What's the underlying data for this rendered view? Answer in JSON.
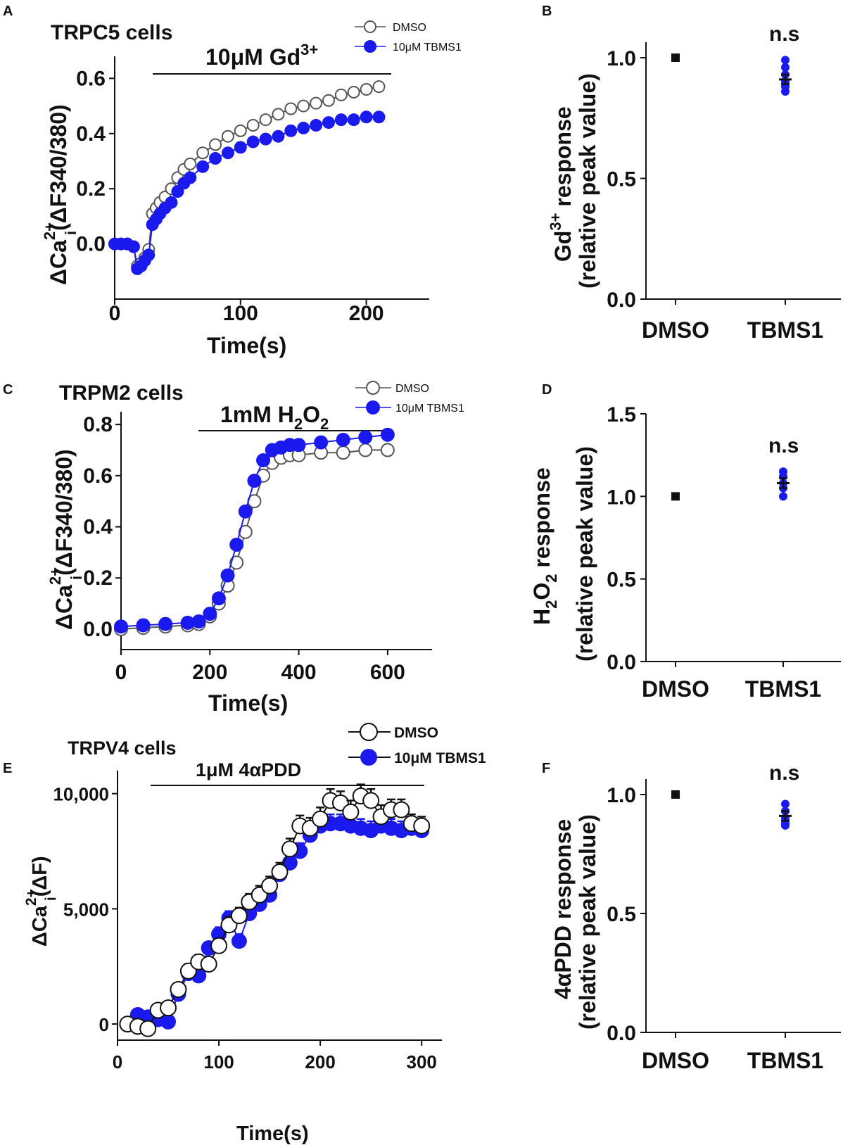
{
  "chart_data": [
    {
      "panel": "A",
      "type": "scatter",
      "title": "TRPC5 cells",
      "stimulus": "10μM Gd",
      "stimulus_sup": "3+",
      "stimulus_range": [
        25,
        212
      ],
      "xlabel": "Time(s)",
      "ylabel_main": "ΔCa",
      "ylabel_sup": "2+",
      "ylabel_sub": "i",
      "ylabel_rest": "(ΔF340/380)",
      "xlim": [
        0,
        250
      ],
      "ylim": [
        -0.2,
        0.68
      ],
      "xticks": [
        "0",
        "100",
        "200"
      ],
      "yticks": [
        "0.0",
        "0.2",
        "0.4",
        "0.6"
      ],
      "legend": [
        "DMSO",
        "10μM TBMS1"
      ],
      "series": [
        {
          "name": "DMSO",
          "x": [
            0,
            5,
            10,
            15,
            18,
            21,
            24,
            27,
            30,
            33,
            36,
            40,
            45,
            50,
            55,
            60,
            70,
            80,
            90,
            100,
            110,
            120,
            130,
            140,
            150,
            160,
            170,
            180,
            190,
            200,
            210
          ],
          "y": [
            0,
            0,
            0,
            -0.01,
            -0.08,
            -0.07,
            -0.05,
            -0.02,
            0.11,
            0.13,
            0.15,
            0.17,
            0.2,
            0.24,
            0.27,
            0.29,
            0.33,
            0.36,
            0.39,
            0.41,
            0.43,
            0.45,
            0.47,
            0.49,
            0.5,
            0.51,
            0.52,
            0.54,
            0.55,
            0.56,
            0.57
          ]
        },
        {
          "name": "10μM TBMS1",
          "x": [
            0,
            5,
            10,
            15,
            18,
            21,
            24,
            27,
            30,
            33,
            36,
            40,
            45,
            50,
            55,
            60,
            70,
            80,
            90,
            100,
            110,
            120,
            130,
            140,
            150,
            160,
            170,
            180,
            190,
            200,
            210
          ],
          "y": [
            0,
            0,
            0,
            -0.01,
            -0.09,
            -0.08,
            -0.06,
            -0.04,
            0.07,
            0.09,
            0.11,
            0.13,
            0.15,
            0.19,
            0.22,
            0.24,
            0.28,
            0.31,
            0.33,
            0.35,
            0.37,
            0.38,
            0.39,
            0.41,
            0.42,
            0.43,
            0.44,
            0.45,
            0.45,
            0.46,
            0.46
          ]
        }
      ]
    },
    {
      "panel": "B",
      "type": "scatter",
      "categories": [
        "DMSO",
        "TBMS1"
      ],
      "ylabel_main": "Gd",
      "ylabel_sup": "3+",
      "ylabel_rest": " response",
      "ylabel2": "(relative peak value)",
      "ylim": [
        0,
        1.0
      ],
      "yticks": [
        "0.0",
        "0.5",
        "1.0"
      ],
      "significance": "n.s",
      "dmso": 1.0,
      "tbms1_points": [
        0.99,
        0.96,
        0.93,
        0.9,
        0.88,
        0.86
      ],
      "tbms1_mean": 0.91,
      "tbms1_sem": 0.02
    },
    {
      "panel": "C",
      "type": "scatter",
      "title": "TRPM2 cells",
      "stimulus": "1mM H",
      "stimulus_sub1": "2",
      "stimulus_mid": "O",
      "stimulus_sub2": "2",
      "stimulus_range": [
        175,
        600
      ],
      "xlabel": "Time(s)",
      "ylabel_main": "ΔCa",
      "ylabel_sup": "2+",
      "ylabel_sub": "i",
      "ylabel_rest": "(ΔF340/380)",
      "xlim": [
        0,
        700
      ],
      "ylim": [
        -0.08,
        0.85
      ],
      "xticks": [
        "0",
        "200",
        "400",
        "600"
      ],
      "yticks": [
        "0.0",
        "0.2",
        "0.4",
        "0.6",
        "0.8"
      ],
      "legend": [
        "DMSO",
        "10μM TBMS1"
      ],
      "series": [
        {
          "name": "DMSO",
          "x": [
            0,
            50,
            100,
            150,
            175,
            200,
            220,
            240,
            260,
            280,
            300,
            320,
            340,
            360,
            380,
            400,
            450,
            500,
            550,
            600
          ],
          "y": [
            0,
            0.005,
            0.01,
            0.015,
            0.02,
            0.05,
            0.1,
            0.17,
            0.26,
            0.38,
            0.5,
            0.6,
            0.65,
            0.67,
            0.68,
            0.68,
            0.69,
            0.69,
            0.7,
            0.7
          ]
        },
        {
          "name": "10μM TBMS1",
          "x": [
            0,
            50,
            100,
            150,
            175,
            200,
            220,
            240,
            260,
            280,
            300,
            320,
            340,
            360,
            380,
            400,
            450,
            500,
            550,
            600
          ],
          "y": [
            0.01,
            0.015,
            0.02,
            0.025,
            0.03,
            0.06,
            0.12,
            0.21,
            0.33,
            0.46,
            0.58,
            0.66,
            0.7,
            0.71,
            0.72,
            0.72,
            0.73,
            0.74,
            0.75,
            0.76
          ]
        }
      ]
    },
    {
      "panel": "D",
      "type": "scatter",
      "categories": [
        "DMSO",
        "TBMS1"
      ],
      "ylabel_h": "H",
      "ylabel_sub1": "2",
      "ylabel_o": "O",
      "ylabel_sub2": "2",
      "ylabel_rest": " response",
      "ylabel2": "(relative peak value)",
      "ylim": [
        0,
        1.5
      ],
      "yticks": [
        "0.0",
        "0.5",
        "1.0",
        "1.5"
      ],
      "significance": "n.s",
      "dmso": 1.0,
      "tbms1_points": [
        1.15,
        1.12,
        1.08,
        1.05,
        1.0
      ],
      "tbms1_mean": 1.08,
      "tbms1_sem": 0.03
    },
    {
      "panel": "E",
      "type": "scatter",
      "title": "TRPV4 cells",
      "stimulus": "1μM 4αPDD",
      "stimulus_range": [
        30,
        305
      ],
      "xlabel": "Time(s)",
      "ylabel_main": "ΔCa",
      "ylabel_sup": "2+",
      "ylabel_sub": "i",
      "ylabel_rest": "(ΔF)",
      "xlim": [
        0,
        320
      ],
      "ylim": [
        -700,
        11000
      ],
      "xticks": [
        "0",
        "100",
        "200",
        "300"
      ],
      "yticks": [
        "0",
        "5,000",
        "10,000"
      ],
      "legend": [
        "DMSO",
        "10μM TBMS1"
      ],
      "series": [
        {
          "name": "DMSO",
          "x": [
            10,
            20,
            30,
            40,
            50,
            60,
            70,
            80,
            90,
            100,
            110,
            120,
            130,
            140,
            150,
            160,
            170,
            180,
            190,
            200,
            210,
            220,
            230,
            240,
            250,
            260,
            270,
            280,
            290,
            300
          ],
          "y": [
            0,
            -100,
            -200,
            600,
            700,
            1500,
            2300,
            2700,
            2600,
            3400,
            4300,
            4700,
            5300,
            5600,
            6000,
            6600,
            7600,
            8600,
            8500,
            8900,
            9700,
            9600,
            9200,
            9900,
            9700,
            9000,
            9300,
            9300,
            8700,
            8600
          ],
          "err": [
            200,
            250,
            250,
            250,
            250,
            250,
            300,
            300,
            300,
            300,
            350,
            350,
            350,
            400,
            400,
            400,
            450,
            450,
            450,
            500,
            500,
            500,
            500,
            500,
            500,
            500,
            450,
            450,
            400,
            400
          ]
        },
        {
          "name": "10μM TBMS1",
          "x": [
            20,
            30,
            40,
            50,
            60,
            70,
            80,
            90,
            100,
            110,
            120,
            130,
            140,
            150,
            160,
            170,
            180,
            190,
            200,
            210,
            220,
            230,
            240,
            250,
            260,
            270,
            280,
            290,
            300
          ],
          "y": [
            400,
            300,
            200,
            100,
            1300,
            2200,
            2100,
            3300,
            3900,
            4600,
            3600,
            4800,
            5200,
            5600,
            6500,
            7000,
            7500,
            8200,
            8600,
            8700,
            8700,
            8600,
            8500,
            8400,
            8600,
            8500,
            8400,
            8500,
            8400
          ],
          "err": [
            150,
            150,
            200,
            200,
            250,
            250,
            250,
            250,
            300,
            300,
            300,
            300,
            300,
            350,
            350,
            350,
            350,
            400,
            400,
            400,
            400,
            400,
            400,
            400,
            400,
            400,
            400,
            400,
            400
          ]
        }
      ]
    },
    {
      "panel": "F",
      "type": "scatter",
      "categories": [
        "DMSO",
        "TBMS1"
      ],
      "ylabel": "4αPDD response",
      "ylabel2": "(relative peak value)",
      "ylim": [
        0,
        1.0
      ],
      "yticks": [
        "0.0",
        "0.5",
        "1.0"
      ],
      "significance": "n.s",
      "dmso": 1.0,
      "tbms1_points": [
        0.96,
        0.93,
        0.9,
        0.88,
        0.87
      ],
      "tbms1_mean": 0.91,
      "tbms1_sem": 0.02
    }
  ],
  "colors": {
    "dmso": "#555555",
    "tbms1": "#1a1aee",
    "axis": "#111111"
  }
}
